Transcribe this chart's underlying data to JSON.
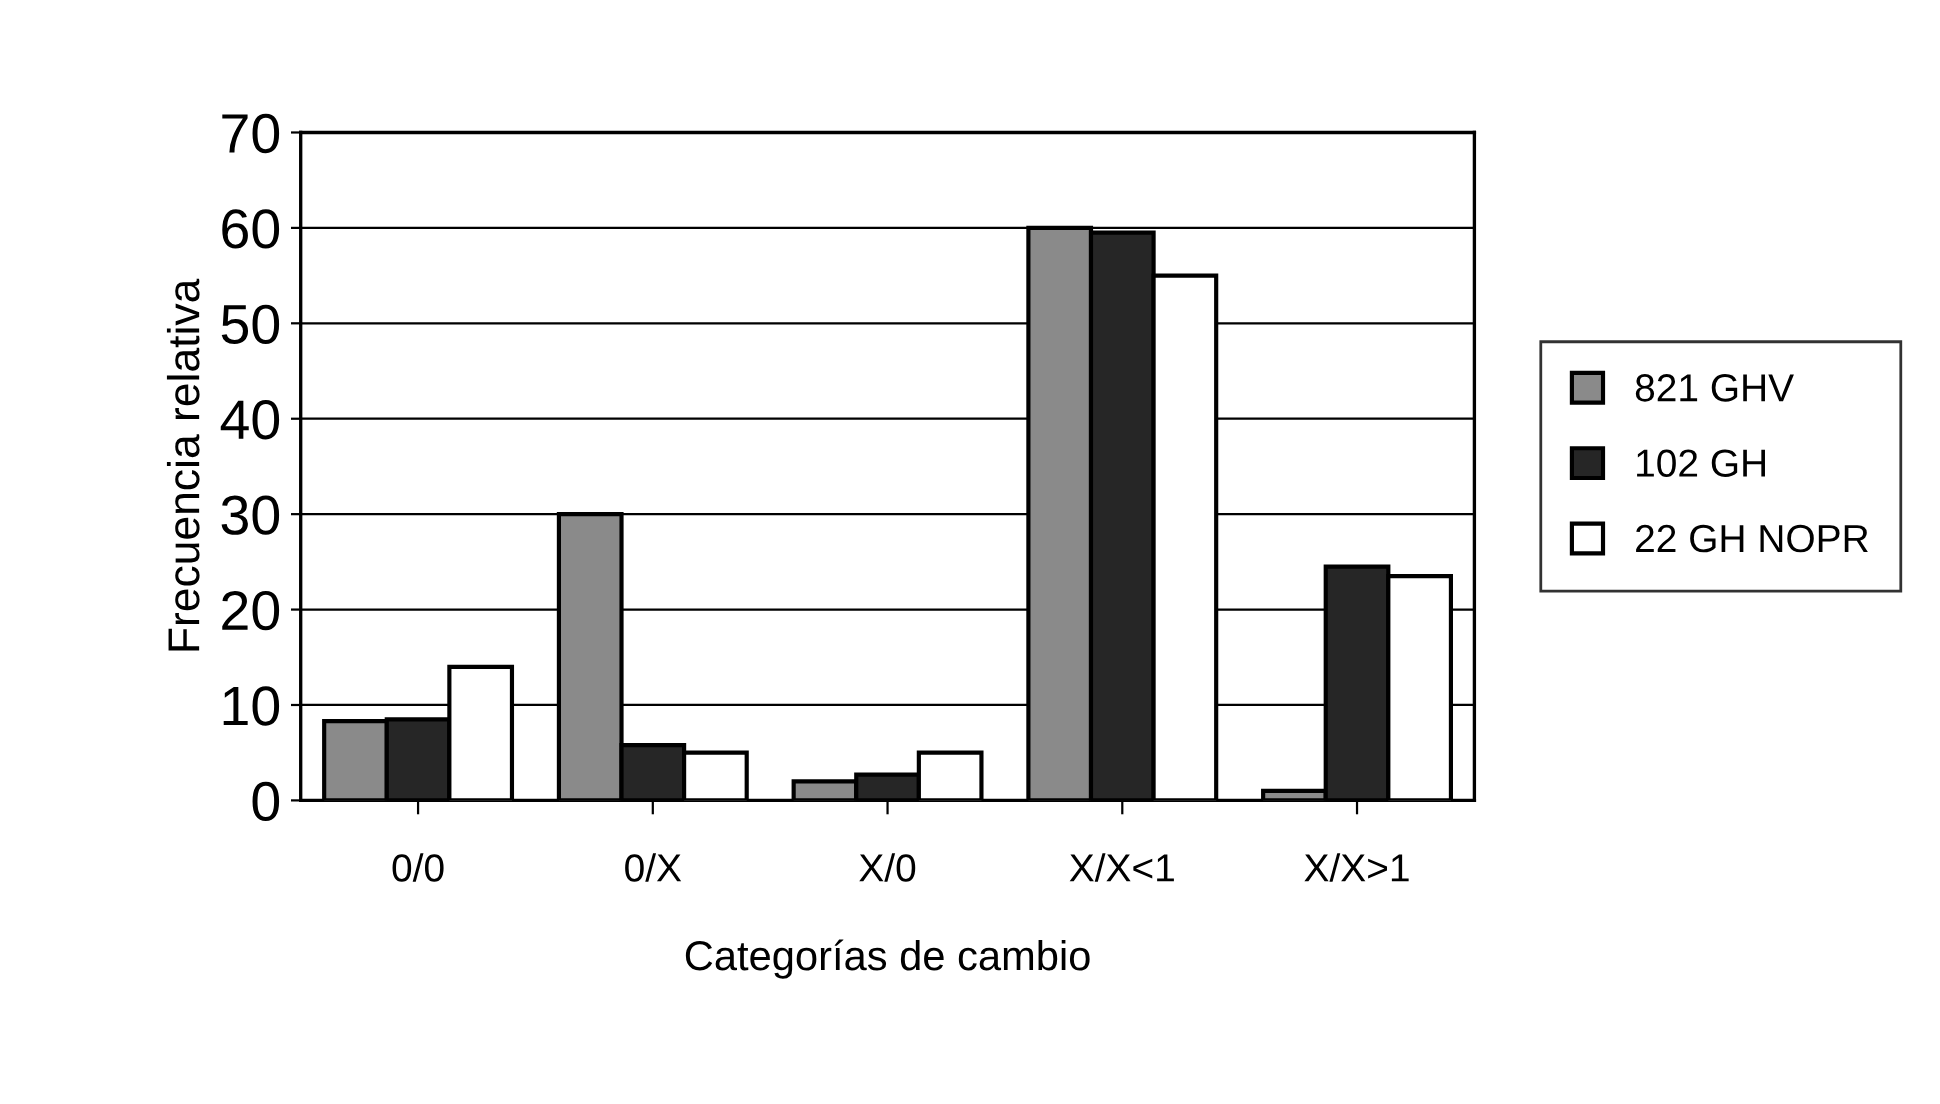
{
  "chart_data": {
    "type": "bar",
    "xlabel": "Categorías de cambio",
    "ylabel": "Frecuencia relativa",
    "categories": [
      "0/0",
      "0/X",
      "X/0",
      "X/X<1",
      "X/X>1"
    ],
    "series": [
      {
        "name": "821 GHV",
        "color": "#8a8a8a",
        "values": [
          8.3,
          30,
          2,
          60,
          1
        ]
      },
      {
        "name": "102 GH",
        "color": "#262626",
        "values": [
          8.5,
          5.8,
          2.7,
          59.5,
          24.5
        ]
      },
      {
        "name": "22 GH NOPR",
        "color": "#ffffff",
        "values": [
          14,
          5,
          5,
          55,
          23.5
        ]
      }
    ],
    "ylim": [
      0,
      70
    ],
    "yticks": [
      0,
      10,
      20,
      30,
      40,
      50,
      60,
      70
    ],
    "grid": "y",
    "legend": "right"
  }
}
